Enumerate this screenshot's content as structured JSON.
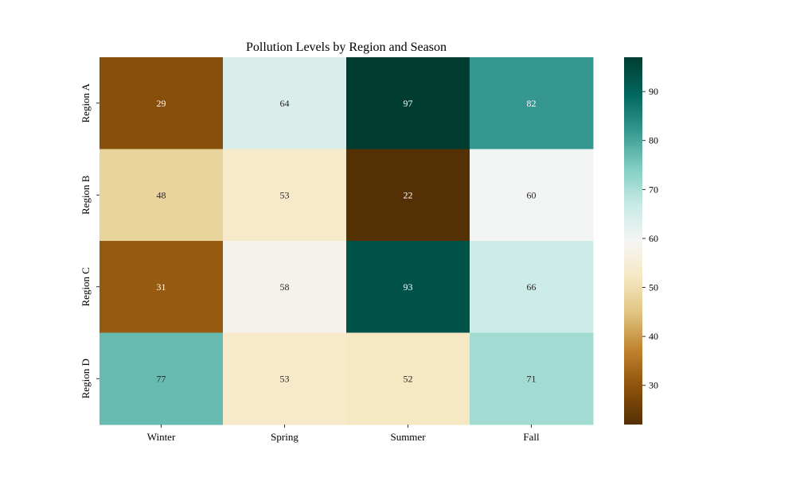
{
  "chart_data": {
    "type": "heatmap",
    "title": "Pollution Levels by Region and Season",
    "xlabel": "",
    "ylabel": "",
    "x_categories": [
      "Winter",
      "Spring",
      "Summer",
      "Fall"
    ],
    "y_categories": [
      "Region A",
      "Region B",
      "Region C",
      "Region D"
    ],
    "values": [
      [
        29,
        64,
        97,
        82
      ],
      [
        48,
        53,
        22,
        60
      ],
      [
        31,
        58,
        93,
        66
      ],
      [
        77,
        53,
        52,
        71
      ]
    ],
    "colormap": "BrBG",
    "vmin": 22,
    "vmax": 97,
    "colorbar_ticks": [
      30,
      40,
      50,
      60,
      70,
      80,
      90
    ],
    "colorbar_ticks_text": [
      "30",
      "40",
      "50",
      "60",
      "70",
      "80",
      "90"
    ]
  }
}
